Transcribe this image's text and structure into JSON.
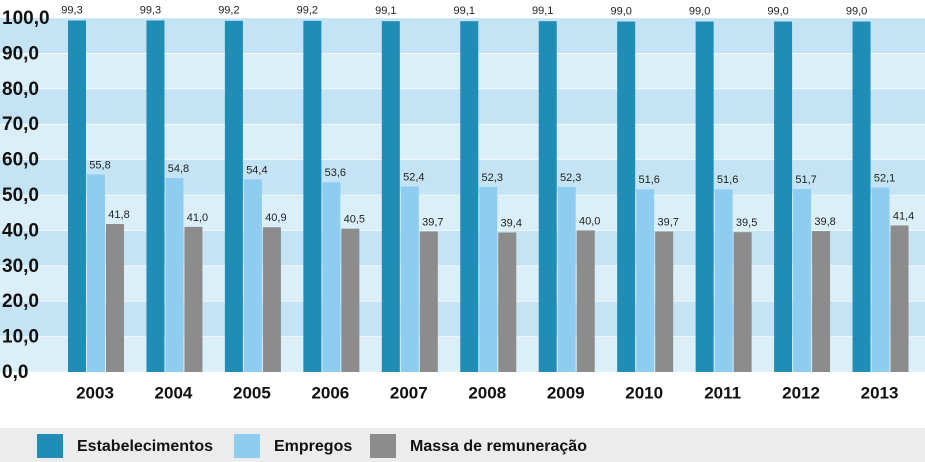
{
  "chart_data": {
    "type": "bar",
    "categories": [
      "2003",
      "2004",
      "2005",
      "2006",
      "2007",
      "2008",
      "2009",
      "2010",
      "2011",
      "2012",
      "2013"
    ],
    "series": [
      {
        "name": "Estabelecimentos",
        "color": "#1f8db6",
        "values": [
          99.3,
          99.3,
          99.2,
          99.2,
          99.1,
          99.1,
          99.1,
          99.0,
          99.0,
          99.0,
          99.0
        ],
        "value_labels": [
          "99,3",
          "99,3",
          "99,2",
          "99,2",
          "99,1",
          "99,1",
          "99,1",
          "99,0",
          "99,0",
          "99,0",
          "99,0"
        ]
      },
      {
        "name": "Empregos",
        "color": "#8ecdf0",
        "values": [
          55.8,
          54.8,
          54.4,
          53.6,
          52.4,
          52.3,
          52.3,
          51.6,
          51.6,
          51.7,
          52.1
        ],
        "value_labels": [
          "55,8",
          "54,8",
          "54,4",
          "53,6",
          "52,4",
          "52,3",
          "52,3",
          "51,6",
          "51,6",
          "51,7",
          "52,1"
        ]
      },
      {
        "name": "Massa de remuneração",
        "color": "#8c8c8c",
        "values": [
          41.8,
          41.0,
          40.9,
          40.5,
          39.7,
          39.4,
          40.0,
          39.7,
          39.5,
          39.8,
          41.4
        ],
        "value_labels": [
          "41,8",
          "41,0",
          "40,9",
          "40,5",
          "39,7",
          "39,4",
          "40,0",
          "39,7",
          "39,5",
          "39,8",
          "41,4"
        ]
      }
    ],
    "ylim": [
      0,
      100
    ],
    "yticks": [
      {
        "value": 0,
        "label": "0,0"
      },
      {
        "value": 10,
        "label": "10,0"
      },
      {
        "value": 20,
        "label": "20,0"
      },
      {
        "value": 30,
        "label": "30,0"
      },
      {
        "value": 40,
        "label": "40,0"
      },
      {
        "value": 50,
        "label": "50,0"
      },
      {
        "value": 60,
        "label": "60,0"
      },
      {
        "value": 70,
        "label": "70,0"
      },
      {
        "value": 80,
        "label": "80,0"
      },
      {
        "value": 90,
        "label": "90,0"
      },
      {
        "value": 100,
        "label": "100,0"
      }
    ],
    "grid": true,
    "legend": "bottom"
  }
}
